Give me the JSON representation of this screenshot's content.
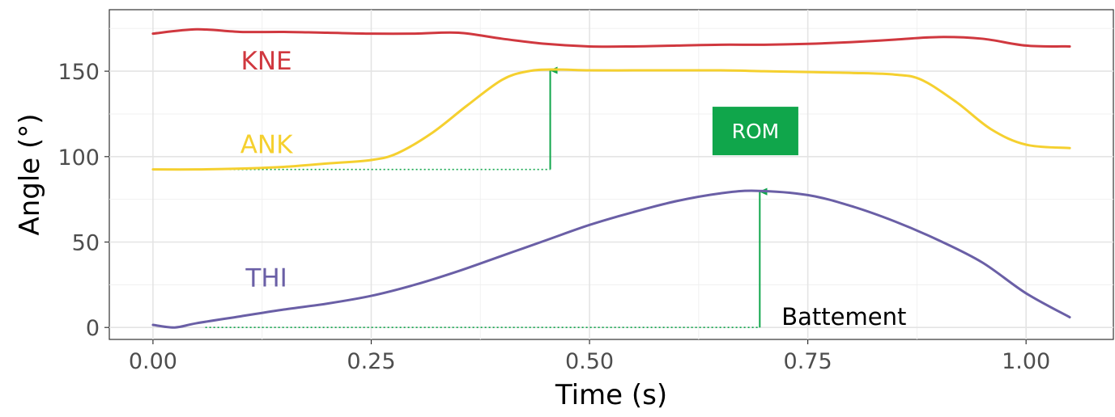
{
  "chart_data": {
    "type": "line",
    "xlabel": "Time (s)",
    "ylabel": "Angle (°)",
    "xlim": [
      -0.05,
      1.1
    ],
    "ylim": [
      -7,
      186
    ],
    "x_ticks": [
      0.0,
      0.25,
      0.5,
      0.75,
      1.0
    ],
    "x_tick_labels": [
      "0.00",
      "0.25",
      "0.50",
      "0.75",
      "1.00"
    ],
    "y_ticks": [
      0,
      50,
      100,
      150
    ],
    "y_tick_labels": [
      "0",
      "50",
      "100",
      "150"
    ],
    "grid": true,
    "series": [
      {
        "name": "KNE",
        "color": "#d0383f",
        "x": [
          0.0,
          0.05,
          0.1,
          0.15,
          0.2,
          0.25,
          0.3,
          0.35,
          0.4,
          0.45,
          0.5,
          0.55,
          0.6,
          0.65,
          0.7,
          0.75,
          0.8,
          0.85,
          0.9,
          0.95,
          1.0,
          1.05
        ],
        "y": [
          172,
          174.5,
          173,
          173,
          172.5,
          172,
          172,
          172.5,
          169,
          166,
          164.5,
          164.5,
          165,
          165.5,
          165.5,
          166,
          167,
          168.5,
          170,
          169,
          165,
          164.5
        ]
      },
      {
        "name": "ANK",
        "color": "#f5d02f",
        "x": [
          0.0,
          0.05,
          0.1,
          0.15,
          0.2,
          0.25,
          0.28,
          0.32,
          0.36,
          0.4,
          0.43,
          0.46,
          0.5,
          0.55,
          0.6,
          0.65,
          0.7,
          0.75,
          0.8,
          0.85,
          0.88,
          0.92,
          0.96,
          1.0,
          1.05
        ],
        "y": [
          92.5,
          92.5,
          93,
          94,
          96,
          98,
          102,
          114,
          130,
          145,
          150,
          151,
          150.5,
          150.5,
          150.5,
          150.5,
          150,
          149.5,
          149,
          148,
          145,
          132,
          116,
          107,
          105
        ]
      },
      {
        "name": "THI",
        "color": "#6a5fa6",
        "x": [
          0.0,
          0.025,
          0.05,
          0.1,
          0.15,
          0.2,
          0.25,
          0.3,
          0.35,
          0.4,
          0.45,
          0.5,
          0.55,
          0.6,
          0.65,
          0.69,
          0.75,
          0.8,
          0.85,
          0.9,
          0.95,
          1.0,
          1.05
        ],
        "y": [
          1.5,
          0,
          2.5,
          6.5,
          10.5,
          14,
          18.5,
          25,
          33,
          42,
          51,
          60,
          67.5,
          74,
          78.5,
          80,
          77.5,
          71,
          62,
          51,
          38,
          20,
          6
        ]
      }
    ],
    "series_labels": [
      {
        "text": "KNE",
        "x": 0.13,
        "y": 151,
        "color": "#d0383f"
      },
      {
        "text": "ANK",
        "x": 0.13,
        "y": 102,
        "color": "#f5d02f"
      },
      {
        "text": "THI",
        "x": 0.13,
        "y": 24,
        "color": "#6a5fa6"
      }
    ],
    "annotations": {
      "rom_label": "ROM",
      "rom_color": "#10a64b",
      "rom_position": {
        "x": 0.69,
        "y": 115
      },
      "battement_label": "Battement",
      "battement_position": {
        "x": 0.72,
        "y": 1.5
      },
      "rom_arrows": [
        {
          "x_start": 0.06,
          "x_end": 0.455,
          "baseline": 92.5,
          "peak": 151
        },
        {
          "x_start": 0.06,
          "x_end": 0.695,
          "baseline": 0,
          "peak": 80
        }
      ]
    }
  }
}
